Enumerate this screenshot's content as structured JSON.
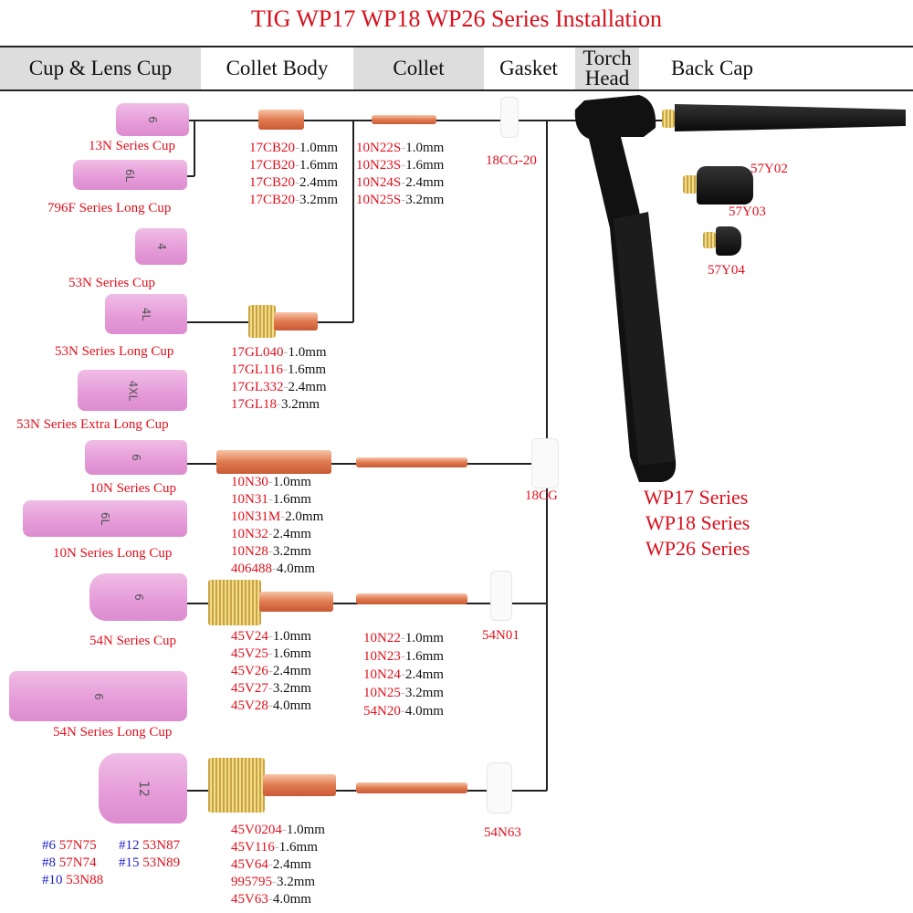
{
  "title": "TIG WP17 WP18 WP26 Series Installation",
  "headers": [
    "Cup & Lens Cup",
    "Collet Body",
    "Collet",
    "Gasket",
    "Torch Head",
    "Back Cap"
  ],
  "cups": [
    {
      "mark": "6",
      "label": "13N Series Cup"
    },
    {
      "mark": "6L",
      "label": "796F Series Long Cup"
    },
    {
      "mark": "4",
      "label": "53N Series Cup"
    },
    {
      "mark": "4L",
      "label": "53N Series Long Cup"
    },
    {
      "mark": "4XL",
      "label": "53N Series Extra Long Cup"
    },
    {
      "mark": "6",
      "label": "10N Series Cup"
    },
    {
      "mark": "6L",
      "label": "10N Series Long Cup"
    },
    {
      "mark": "6",
      "label": "54N Series Cup"
    },
    {
      "mark": "6",
      "label": "54N Series Long Cup"
    },
    {
      "mark": "12",
      "label": ""
    }
  ],
  "lists": {
    "cb17": [
      [
        "17CB20",
        "1.0mm"
      ],
      [
        "17CB20",
        "1.6mm"
      ],
      [
        "17CB20",
        "2.4mm"
      ],
      [
        "17CB20",
        "3.2mm"
      ]
    ],
    "col_s": [
      [
        "10N22S",
        "1.0mm"
      ],
      [
        "10N23S",
        "1.6mm"
      ],
      [
        "10N24S",
        "2.4mm"
      ],
      [
        "10N25S",
        "3.2mm"
      ]
    ],
    "gl": [
      [
        "17GL040",
        "1.0mm"
      ],
      [
        "17GL116",
        "1.6mm"
      ],
      [
        "17GL332",
        "2.4mm"
      ],
      [
        "17GL18",
        "3.2mm"
      ]
    ],
    "n10": [
      [
        "10N30",
        "1.0mm"
      ],
      [
        "10N31",
        "1.6mm"
      ],
      [
        "10N31M",
        "2.0mm"
      ],
      [
        "10N32",
        "2.4mm"
      ],
      [
        "10N28",
        "3.2mm"
      ],
      [
        "406488",
        "4.0mm"
      ]
    ],
    "v45": [
      [
        "45V24",
        "1.0mm"
      ],
      [
        "45V25",
        "1.6mm"
      ],
      [
        "45V26",
        "2.4mm"
      ],
      [
        "45V27",
        "3.2mm"
      ],
      [
        "45V28",
        "4.0mm"
      ]
    ],
    "col": [
      [
        "10N22",
        "1.0mm"
      ],
      [
        "10N23",
        "1.6mm"
      ],
      [
        "10N24",
        "2.4mm"
      ],
      [
        "10N25",
        "3.2mm"
      ],
      [
        "54N20",
        "4.0mm"
      ]
    ],
    "v45b": [
      [
        "45V0204",
        "1.0mm"
      ],
      [
        "45V116",
        "1.6mm"
      ],
      [
        "45V64",
        "2.4mm"
      ],
      [
        "995795",
        "3.2mm"
      ],
      [
        "45V63",
        "4.0mm"
      ]
    ]
  },
  "gaskets": [
    "18CG-20",
    "18CG",
    "54N01",
    "54N63"
  ],
  "back_caps": [
    "57Y02",
    "57Y03",
    "57Y04"
  ],
  "series": [
    "WP17 Series",
    "WP18 Series",
    "WP26 Series"
  ],
  "large_cups": [
    [
      "#6",
      "57N75"
    ],
    [
      "#12",
      "53N87"
    ],
    [
      "#8",
      "57N74"
    ],
    [
      "#15",
      "53N89"
    ],
    [
      "#10",
      "53N88"
    ]
  ]
}
